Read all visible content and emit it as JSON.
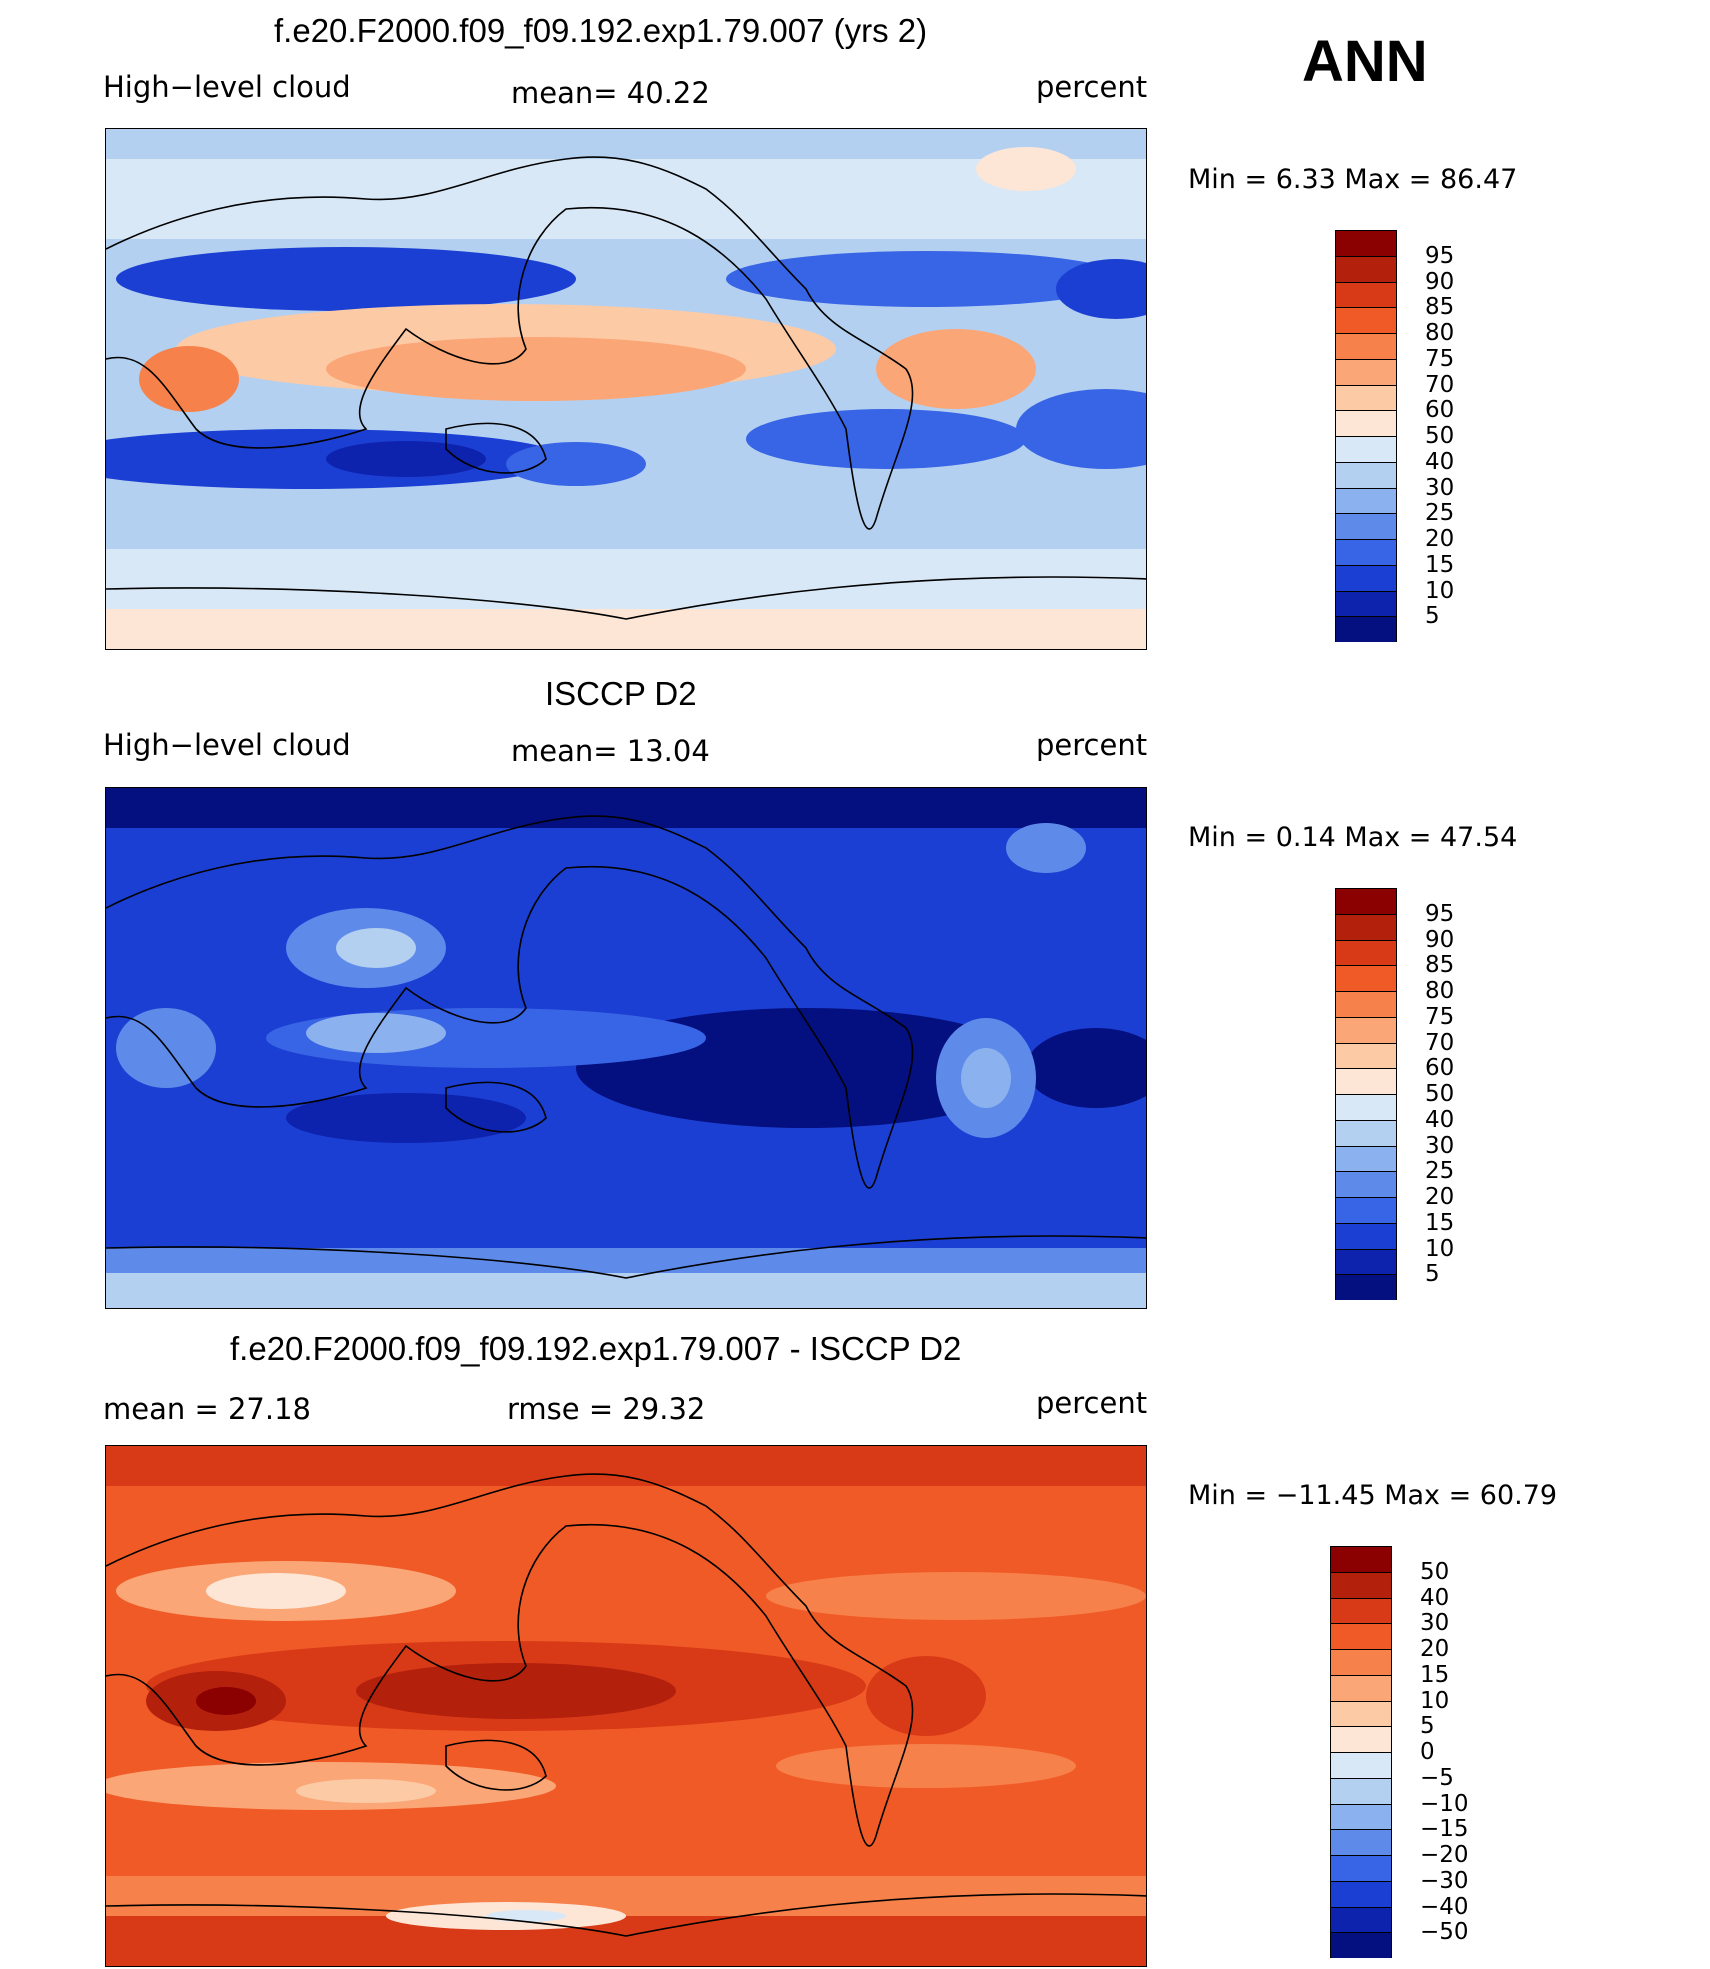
{
  "season": "ANN",
  "panels": [
    {
      "title": "f.e20.F2000.f09_f09.192.exp1.79.007 (yrs 2)",
      "left_label": "High−level cloud",
      "mid_label": "mean=   40.22",
      "right_label": "percent",
      "minmax": "Min =    6.33  Max =   86.47",
      "colorbar_labels": [
        "95",
        "90",
        "85",
        "80",
        "75",
        "70",
        "60",
        "50",
        "40",
        "30",
        "25",
        "20",
        "15",
        "10",
        "5"
      ],
      "colorbar_colors": [
        "#8b0000",
        "#b3200c",
        "#d83a17",
        "#f05a26",
        "#f7814a",
        "#fba676",
        "#fdcaa6",
        "#fde6d6",
        "#d9e8f7",
        "#b3d0f0",
        "#8bb1ee",
        "#5e8bea",
        "#3864e6",
        "#1c3fd3",
        "#0d22ad",
        "#040f80"
      ]
    },
    {
      "title": "ISCCP D2",
      "left_label": "High−level cloud",
      "mid_label": "mean=   13.04",
      "right_label": "percent",
      "minmax": "Min =    0.14  Max =   47.54",
      "colorbar_labels": [
        "95",
        "90",
        "85",
        "80",
        "75",
        "70",
        "60",
        "50",
        "40",
        "30",
        "25",
        "20",
        "15",
        "10",
        "5"
      ],
      "colorbar_colors": [
        "#8b0000",
        "#b3200c",
        "#d83a17",
        "#f05a26",
        "#f7814a",
        "#fba676",
        "#fdcaa6",
        "#fde6d6",
        "#d9e8f7",
        "#b3d0f0",
        "#8bb1ee",
        "#5e8bea",
        "#3864e6",
        "#1c3fd3",
        "#0d22ad",
        "#040f80"
      ]
    },
    {
      "title": "f.e20.F2000.f09_f09.192.exp1.79.007 - ISCCP D2",
      "left_label": "mean =   27.18",
      "mid_label": "rmse =   29.32",
      "right_label": "percent",
      "minmax": "Min = −11.45  Max =   60.79",
      "colorbar_labels": [
        "50",
        "40",
        "30",
        "20",
        "15",
        "10",
        "5",
        "0",
        "−5",
        "−10",
        "−15",
        "−20",
        "−30",
        "−40",
        "−50"
      ],
      "colorbar_colors": [
        "#8b0000",
        "#b3200c",
        "#d83a17",
        "#f05a26",
        "#f7814a",
        "#fba676",
        "#fdcaa6",
        "#fde6d6",
        "#d9e8f7",
        "#b3d0f0",
        "#8bb1ee",
        "#5e8bea",
        "#3864e6",
        "#1c3fd3",
        "#0d22ad",
        "#040f80"
      ]
    }
  ]
}
